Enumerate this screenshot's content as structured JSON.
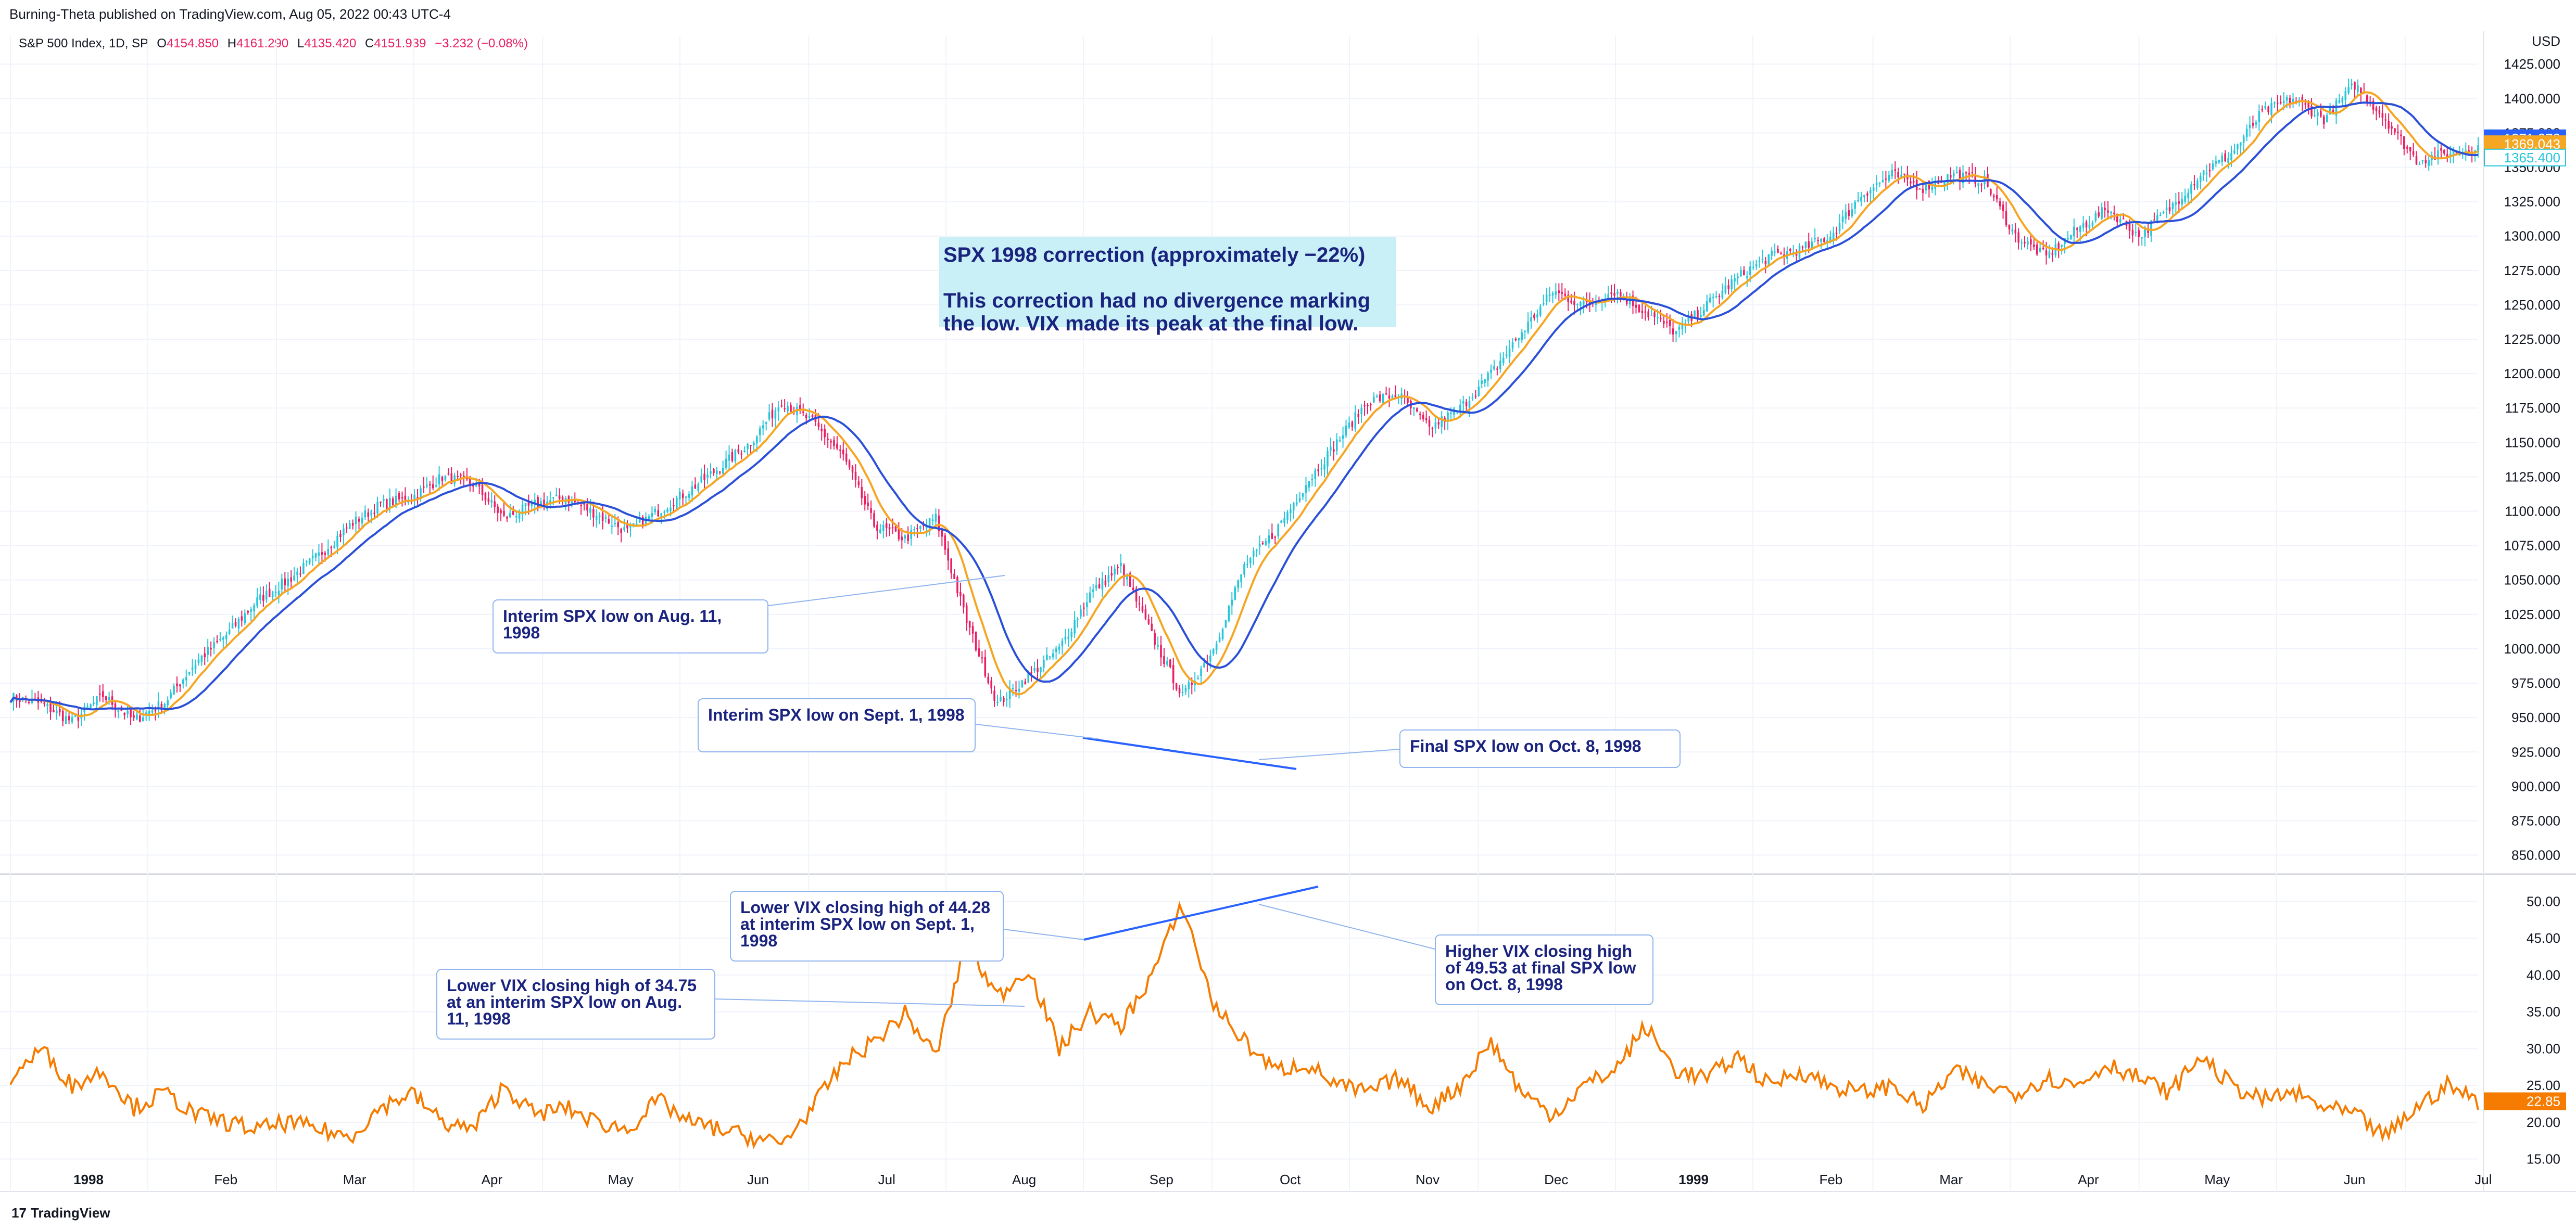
{
  "header": {
    "publisher": "Burning-Theta published on TradingView.com, Aug 05, 2022 00:43 UTC-4"
  },
  "legend": {
    "symbol": "S&P 500 Index, 1D, SP",
    "o_label": "O",
    "o_value": "4154.850",
    "h_label": "H",
    "h_value": "4161.290",
    "l_label": "L",
    "l_value": "4135.420",
    "c_label": "C",
    "c_value": "4151.939",
    "change": "−3.232 (−0.08%)"
  },
  "footer": {
    "brand": "TradingView",
    "logo": "17"
  },
  "annotations": {
    "main_title": "SPX 1998 correction (approximately −22%)",
    "main_body": "This correction had no divergence marking the low. VIX made its peak at the final low.",
    "aug11": "Interim SPX low on Aug. 11, 1998",
    "sept1": "Interim SPX low on Sept. 1, 1998",
    "oct8": "Final SPX low on Oct. 8, 1998",
    "vix_sept1": "Lower VIX closing high of 44.28 at interim SPX low on Sept. 1, 1998",
    "vix_aug11": "Lower VIX closing high of 34.75 at an interim SPX low on Aug. 11, 1998",
    "vix_oct8": "Higher VIX closing high of 49.53 at final SPX low on Oct. 8, 1998"
  },
  "colors": {
    "up": "#26c6da",
    "down": "#e91e63",
    "ma_fast": "#f5a623",
    "ma_slow": "#2b50d8",
    "vix": "#f57c00",
    "trendline": "#2962ff",
    "annotation_text": "#1a237e"
  },
  "chart_data": [
    {
      "type": "candlestick",
      "ylabel": "USD",
      "ylim": [
        840,
        1430
      ],
      "yticks": [
        "1425.000",
        "1400.000",
        "1375.000",
        "1350.000",
        "1325.000",
        "1300.000",
        "1275.000",
        "1250.000",
        "1225.000",
        "1200.000",
        "1175.000",
        "1150.000",
        "1125.000",
        "1100.000",
        "1075.000",
        "1050.000",
        "1025.000",
        "1000.000",
        "975.000",
        "950.000",
        "925.000",
        "900.000",
        "875.000",
        "850.000"
      ],
      "price_labels": [
        {
          "value": 1371.07,
          "text": "1371.070",
          "color": "#2962ff"
        },
        {
          "value": 1369.043,
          "text": "1369.043",
          "color": "#f5a623"
        },
        {
          "value": 1365.4,
          "text": "1365.400",
          "color": "#26c6da"
        }
      ],
      "series": [
        {
          "name": "close",
          "x": [
            0,
            10,
            20,
            30,
            40,
            50,
            60,
            70,
            80,
            90,
            100,
            110,
            120,
            130,
            140,
            150,
            160,
            170,
            180,
            190,
            200,
            210,
            220,
            230,
            240,
            250,
            260,
            270,
            280,
            290,
            300,
            310,
            320,
            330,
            340,
            350,
            360,
            370,
            380,
            390,
            400
          ],
          "values": [
            965,
            960,
            947,
            966,
            948,
            961,
            990,
            1010,
            1035,
            1050,
            1068,
            1090,
            1105,
            1110,
            1125,
            1120,
            1095,
            1105,
            1110,
            1098,
            1085,
            1100,
            1115,
            1132,
            1150,
            1180,
            1165,
            1140,
            1090,
            1080,
            1095,
            1020,
            960,
            980,
            1000,
            1040,
            1060,
            1010,
            965,
            1000,
            1060
          ]
        },
        {
          "name": "close",
          "x": [
            410,
            420,
            430,
            440,
            450,
            460,
            470,
            480,
            490,
            500,
            510,
            520,
            530,
            540,
            550,
            560,
            570,
            580,
            590,
            600,
            610,
            620,
            630,
            640,
            650,
            660,
            670,
            680,
            690,
            700,
            710,
            720,
            730,
            740,
            750,
            760,
            770,
            780,
            790,
            800
          ],
          "values": [
            1085,
            1120,
            1150,
            1180,
            1185,
            1160,
            1175,
            1200,
            1230,
            1260,
            1250,
            1260,
            1245,
            1230,
            1250,
            1270,
            1285,
            1290,
            1300,
            1330,
            1345,
            1335,
            1345,
            1340,
            1300,
            1285,
            1305,
            1320,
            1300,
            1320,
            1345,
            1360,
            1390,
            1400,
            1385,
            1410,
            1385,
            1355,
            1360,
            1365
          ]
        }
      ]
    },
    {
      "type": "line",
      "ylabel": "",
      "ylim": [
        12,
        53
      ],
      "yticks": [
        "50.00",
        "45.00",
        "40.00",
        "35.00",
        "30.00",
        "25.00",
        "20.00",
        "15.00"
      ],
      "price_labels": [
        {
          "value": 22.85,
          "text": "22.85",
          "color": "#f57c00"
        }
      ],
      "series": [
        {
          "name": "VIX",
          "x": [
            0,
            10,
            20,
            30,
            40,
            50,
            60,
            70,
            80,
            90,
            100,
            110,
            120,
            130,
            140,
            150,
            160,
            170,
            180,
            190,
            200,
            210,
            220,
            230,
            240,
            250,
            260,
            270,
            280,
            290,
            300,
            310,
            320,
            330,
            340,
            350,
            360,
            370,
            380,
            390,
            400
          ],
          "values": [
            26,
            30,
            25,
            27,
            22,
            24,
            21,
            20,
            19,
            20,
            19,
            18,
            22,
            24,
            20,
            19,
            25,
            21,
            22,
            20,
            19,
            23,
            20,
            19,
            18,
            17,
            22,
            28,
            31,
            34.75,
            29,
            44.28,
            37,
            41,
            30,
            35,
            33,
            40,
            49.53,
            36,
            31
          ]
        },
        {
          "name": "VIX",
          "x": [
            410,
            420,
            430,
            440,
            450,
            460,
            470,
            480,
            490,
            500,
            510,
            520,
            530,
            540,
            550,
            560,
            570,
            580,
            590,
            600,
            610,
            620,
            630,
            640,
            650,
            660,
            670,
            680,
            690,
            700,
            710,
            720,
            730,
            740,
            750,
            760,
            770,
            780,
            790,
            800
          ],
          "values": [
            27,
            28,
            25,
            24,
            26,
            22,
            25,
            31,
            24,
            21,
            25,
            27,
            33,
            27,
            26,
            29,
            25,
            27,
            25,
            24,
            25,
            22,
            27,
            25,
            24,
            26,
            25,
            28,
            26,
            24,
            29,
            25,
            23,
            24,
            22,
            21,
            18,
            22,
            25,
            22.85
          ]
        }
      ]
    }
  ],
  "xaxis": {
    "labels": [
      "1998",
      "Feb",
      "Mar",
      "Apr",
      "May",
      "Jun",
      "Jul",
      "Aug",
      "Sep",
      "Oct",
      "Nov",
      "Dec",
      "1999",
      "Feb",
      "Mar",
      "Apr",
      "May",
      "Jun",
      "Jul"
    ],
    "positions": [
      0,
      32,
      62,
      94,
      124,
      156,
      186,
      218,
      250,
      280,
      312,
      342,
      374,
      406,
      434,
      466,
      496,
      528,
      558
    ]
  }
}
